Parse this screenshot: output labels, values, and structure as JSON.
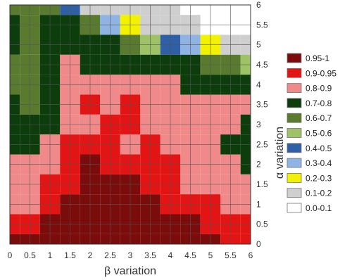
{
  "chart_data": {
    "type": "heatmap",
    "title": "",
    "xlabel": "β variation",
    "ylabel": "α variation",
    "x": [
      0,
      0.5,
      1,
      1.5,
      2,
      2.5,
      3,
      3.5,
      4,
      4.5,
      5,
      5.5,
      6
    ],
    "y": [
      0,
      0.5,
      1,
      1.5,
      2,
      2.5,
      3,
      3.5,
      4,
      4.5,
      5,
      5.5,
      6
    ],
    "xlim": [
      0,
      6
    ],
    "ylim": [
      0,
      6
    ],
    "x_tick_labels": [
      "0",
      "0.5",
      "1",
      "1.5",
      "2",
      "2.5",
      "3",
      "3.5",
      "4",
      "4.5",
      "5",
      "5.5",
      "6"
    ],
    "y_tick_labels": [
      "0",
      "0.5",
      "1",
      "1.5",
      "2",
      "2.5",
      "3",
      "3.5",
      "4",
      "4.5",
      "5",
      "5.5",
      "6"
    ],
    "grid": true,
    "legend_position": "right",
    "legend": [
      {
        "label": "0.95-1",
        "color": "#7a0c0c"
      },
      {
        "label": "0.9-0.95",
        "color": "#e31414"
      },
      {
        "label": "0.8-0.9",
        "color": "#f08a8a"
      },
      {
        "label": "0.7-0.8",
        "color": "#0d3d0d"
      },
      {
        "label": "0.6-0.7",
        "color": "#5a7a30"
      },
      {
        "label": "0.5-0.6",
        "color": "#9ec266"
      },
      {
        "label": "0.4-0.5",
        "color": "#2f5fa5"
      },
      {
        "label": "0.3-0.4",
        "color": "#8fb4e3"
      },
      {
        "label": "0.2-0.3",
        "color": "#f2f200"
      },
      {
        "label": "0.1-0.2",
        "color": "#cfcfcf"
      },
      {
        "label": "0.0-0.1",
        "color": "#ffffff"
      }
    ],
    "z_rows_top_to_bottom": [
      [
        0.67,
        0.66,
        0.63,
        0.45,
        0.15,
        0.12,
        0.12,
        0.12,
        0.1,
        0.08,
        0.05,
        0.05,
        0.05
      ],
      [
        0.72,
        0.65,
        0.7,
        0.72,
        0.62,
        0.35,
        0.25,
        0.15,
        0.12,
        0.1,
        0.08,
        0.05,
        0.05
      ],
      [
        0.76,
        0.68,
        0.73,
        0.75,
        0.74,
        0.72,
        0.62,
        0.55,
        0.45,
        0.35,
        0.25,
        0.18,
        0.15
      ],
      [
        0.68,
        0.62,
        0.76,
        0.84,
        0.78,
        0.77,
        0.76,
        0.74,
        0.73,
        0.7,
        0.65,
        0.6,
        0.55
      ],
      [
        0.65,
        0.62,
        0.74,
        0.86,
        0.85,
        0.84,
        0.86,
        0.82,
        0.8,
        0.78,
        0.77,
        0.76,
        0.74
      ],
      [
        0.72,
        0.65,
        0.72,
        0.88,
        0.92,
        0.86,
        0.91,
        0.84,
        0.83,
        0.85,
        0.84,
        0.82,
        0.8
      ],
      [
        0.75,
        0.72,
        0.75,
        0.87,
        0.85,
        0.92,
        0.93,
        0.88,
        0.86,
        0.87,
        0.85,
        0.83,
        0.75
      ],
      [
        0.72,
        0.7,
        0.8,
        0.91,
        0.93,
        0.9,
        0.88,
        0.92,
        0.88,
        0.85,
        0.82,
        0.78,
        0.74
      ],
      [
        0.82,
        0.85,
        0.88,
        0.93,
        0.95,
        0.94,
        0.92,
        0.91,
        0.9,
        0.86,
        0.83,
        0.82,
        0.78
      ],
      [
        0.84,
        0.86,
        0.9,
        0.94,
        0.96,
        0.96,
        0.95,
        0.93,
        0.91,
        0.89,
        0.86,
        0.84,
        0.82
      ],
      [
        0.86,
        0.88,
        0.93,
        0.96,
        0.97,
        0.97,
        0.96,
        0.96,
        0.94,
        0.92,
        0.9,
        0.88,
        0.86
      ],
      [
        0.92,
        0.9,
        0.95,
        0.97,
        0.97,
        0.98,
        0.97,
        0.97,
        0.96,
        0.95,
        0.93,
        0.91,
        0.9
      ],
      [
        0.96,
        0.96,
        0.97,
        0.98,
        0.98,
        0.98,
        0.98,
        0.98,
        0.97,
        0.97,
        0.96,
        0.93,
        0.92
      ]
    ]
  }
}
